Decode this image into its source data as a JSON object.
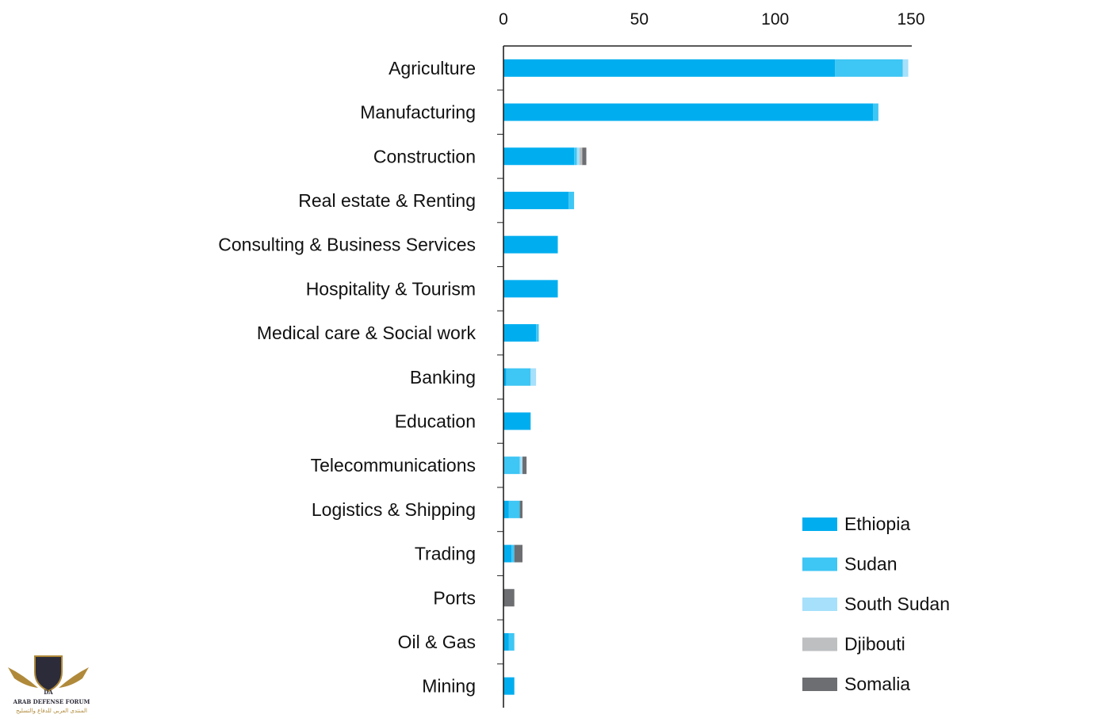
{
  "chart_data": {
    "type": "bar",
    "orientation": "horizontal",
    "stacked": true,
    "categories": [
      "Agriculture",
      "Manufacturing",
      "Construction",
      "Real estate & Renting",
      "Consulting & Business Services",
      "Hospitality & Tourism",
      "Medical care & Social work",
      "Banking",
      "Education",
      "Telecommunications",
      "Logistics & Shipping",
      "Trading",
      "Ports",
      "Oil & Gas",
      "Mining"
    ],
    "series": [
      {
        "name": "Ethiopia",
        "color": "#00aeef",
        "values": [
          122,
          136,
          26,
          24,
          20,
          20,
          12,
          1,
          10,
          0,
          2,
          3,
          0,
          2,
          4
        ]
      },
      {
        "name": "Sudan",
        "color": "#3ec6f4",
        "values": [
          25,
          2,
          1,
          2,
          0,
          0,
          1,
          9,
          0,
          6,
          4,
          1,
          0,
          2,
          0
        ]
      },
      {
        "name": "South Sudan",
        "color": "#a6e0fa",
        "values": [
          2,
          0,
          1,
          0,
          0,
          0,
          0,
          2,
          0,
          1,
          0,
          0,
          0,
          0,
          0
        ]
      },
      {
        "name": "Djibouti",
        "color": "#bdbfc1",
        "values": [
          0,
          0,
          1,
          0,
          0,
          0,
          0,
          0,
          0,
          0,
          0,
          0,
          0,
          0,
          0
        ]
      },
      {
        "name": "Somalia",
        "color": "#6d6e71",
        "values": [
          0,
          0,
          1.5,
          0,
          0,
          0,
          0,
          0,
          0,
          1.5,
          1,
          3,
          4,
          0,
          0
        ]
      }
    ],
    "xticks": [
      "0",
      "50",
      "100",
      "150"
    ],
    "xlim": [
      0,
      150
    ],
    "xaxis_position": "top",
    "legend_position": "bottom-right",
    "grid": false
  },
  "watermark": {
    "text_en": "ARAB DEFENSE FORUM",
    "text_ar": "المنتدى العربي للدفاع والتسليح",
    "monogram": "DA"
  }
}
